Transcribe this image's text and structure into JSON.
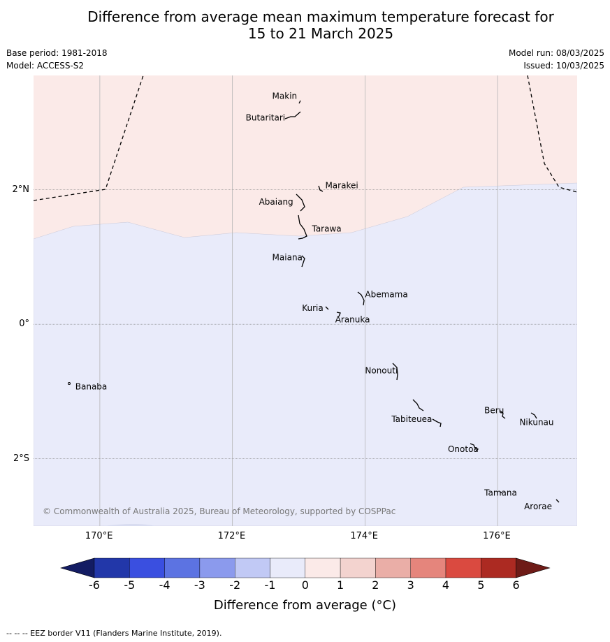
{
  "title_line1": "Difference from average mean maximum temperature forecast for",
  "title_line2": "15 to 21 March 2025",
  "meta": {
    "base_period": "Base period: 1981-2018",
    "model": "Model: ACCESS-S2",
    "model_run": "Model run: 08/03/2025",
    "issued": "Issued: 10/03/2025"
  },
  "map": {
    "lon_range": [
      169.0,
      177.2
    ],
    "lat_range": [
      -3.0,
      3.7
    ],
    "lon_ticks": [
      "170°E",
      "172°E",
      "174°E",
      "176°E"
    ],
    "lat_ticks": [
      "2°N",
      "0°",
      "2°S"
    ],
    "fill_colors": {
      "warm": "#fbeae8",
      "cool": "#e9ebfa"
    },
    "copyright": "© Commonwealth of Australia 2025, Bureau of Meteorology, supported by COSPPac",
    "places": [
      {
        "name": "Makin",
        "lon": 172.6,
        "lat": 3.35
      },
      {
        "name": "Butaritari",
        "lon": 172.2,
        "lat": 3.03
      },
      {
        "name": "Marakei",
        "lon": 173.4,
        "lat": 2.02
      },
      {
        "name": "Abaiang",
        "lon": 172.4,
        "lat": 1.78
      },
      {
        "name": "Tarawa",
        "lon": 173.2,
        "lat": 1.38
      },
      {
        "name": "Maiana",
        "lon": 172.6,
        "lat": 0.95
      },
      {
        "name": "Abemama",
        "lon": 174.0,
        "lat": 0.4
      },
      {
        "name": "Kuria",
        "lon": 173.05,
        "lat": 0.2
      },
      {
        "name": "Aranuka",
        "lon": 173.55,
        "lat": 0.03
      },
      {
        "name": "Nonouti",
        "lon": 174.0,
        "lat": -0.73
      },
      {
        "name": "Banaba",
        "lon": 169.63,
        "lat": -0.97
      },
      {
        "name": "Beru",
        "lon": 175.8,
        "lat": -1.32
      },
      {
        "name": "Tabiteuea",
        "lon": 174.4,
        "lat": -1.45
      },
      {
        "name": "Nikunau",
        "lon": 176.33,
        "lat": -1.5
      },
      {
        "name": "Onotoa",
        "lon": 175.25,
        "lat": -1.9
      },
      {
        "name": "Tamana",
        "lon": 175.8,
        "lat": -2.55
      },
      {
        "name": "Arorae",
        "lon": 176.4,
        "lat": -2.75
      }
    ]
  },
  "legend": {
    "title": "Difference from average (°C)",
    "labels": [
      "-6",
      "-5",
      "-4",
      "-3",
      "-2",
      "-1",
      "0",
      "1",
      "2",
      "3",
      "4",
      "5",
      "6"
    ],
    "colors": [
      "#2237a9",
      "#3a4fe0",
      "#5c73e2",
      "#8b9aed",
      "#c1c9f5",
      "#e9ebfa",
      "#fbeae8",
      "#f3d3cf",
      "#eaaea7",
      "#e5857c",
      "#da4a40",
      "#ac2a22"
    ],
    "low_color": "#131c63",
    "high_color": "#6e1b17"
  },
  "footnote": "--  --  -- EEZ border V11 (Flanders Marine Institute, 2019)."
}
